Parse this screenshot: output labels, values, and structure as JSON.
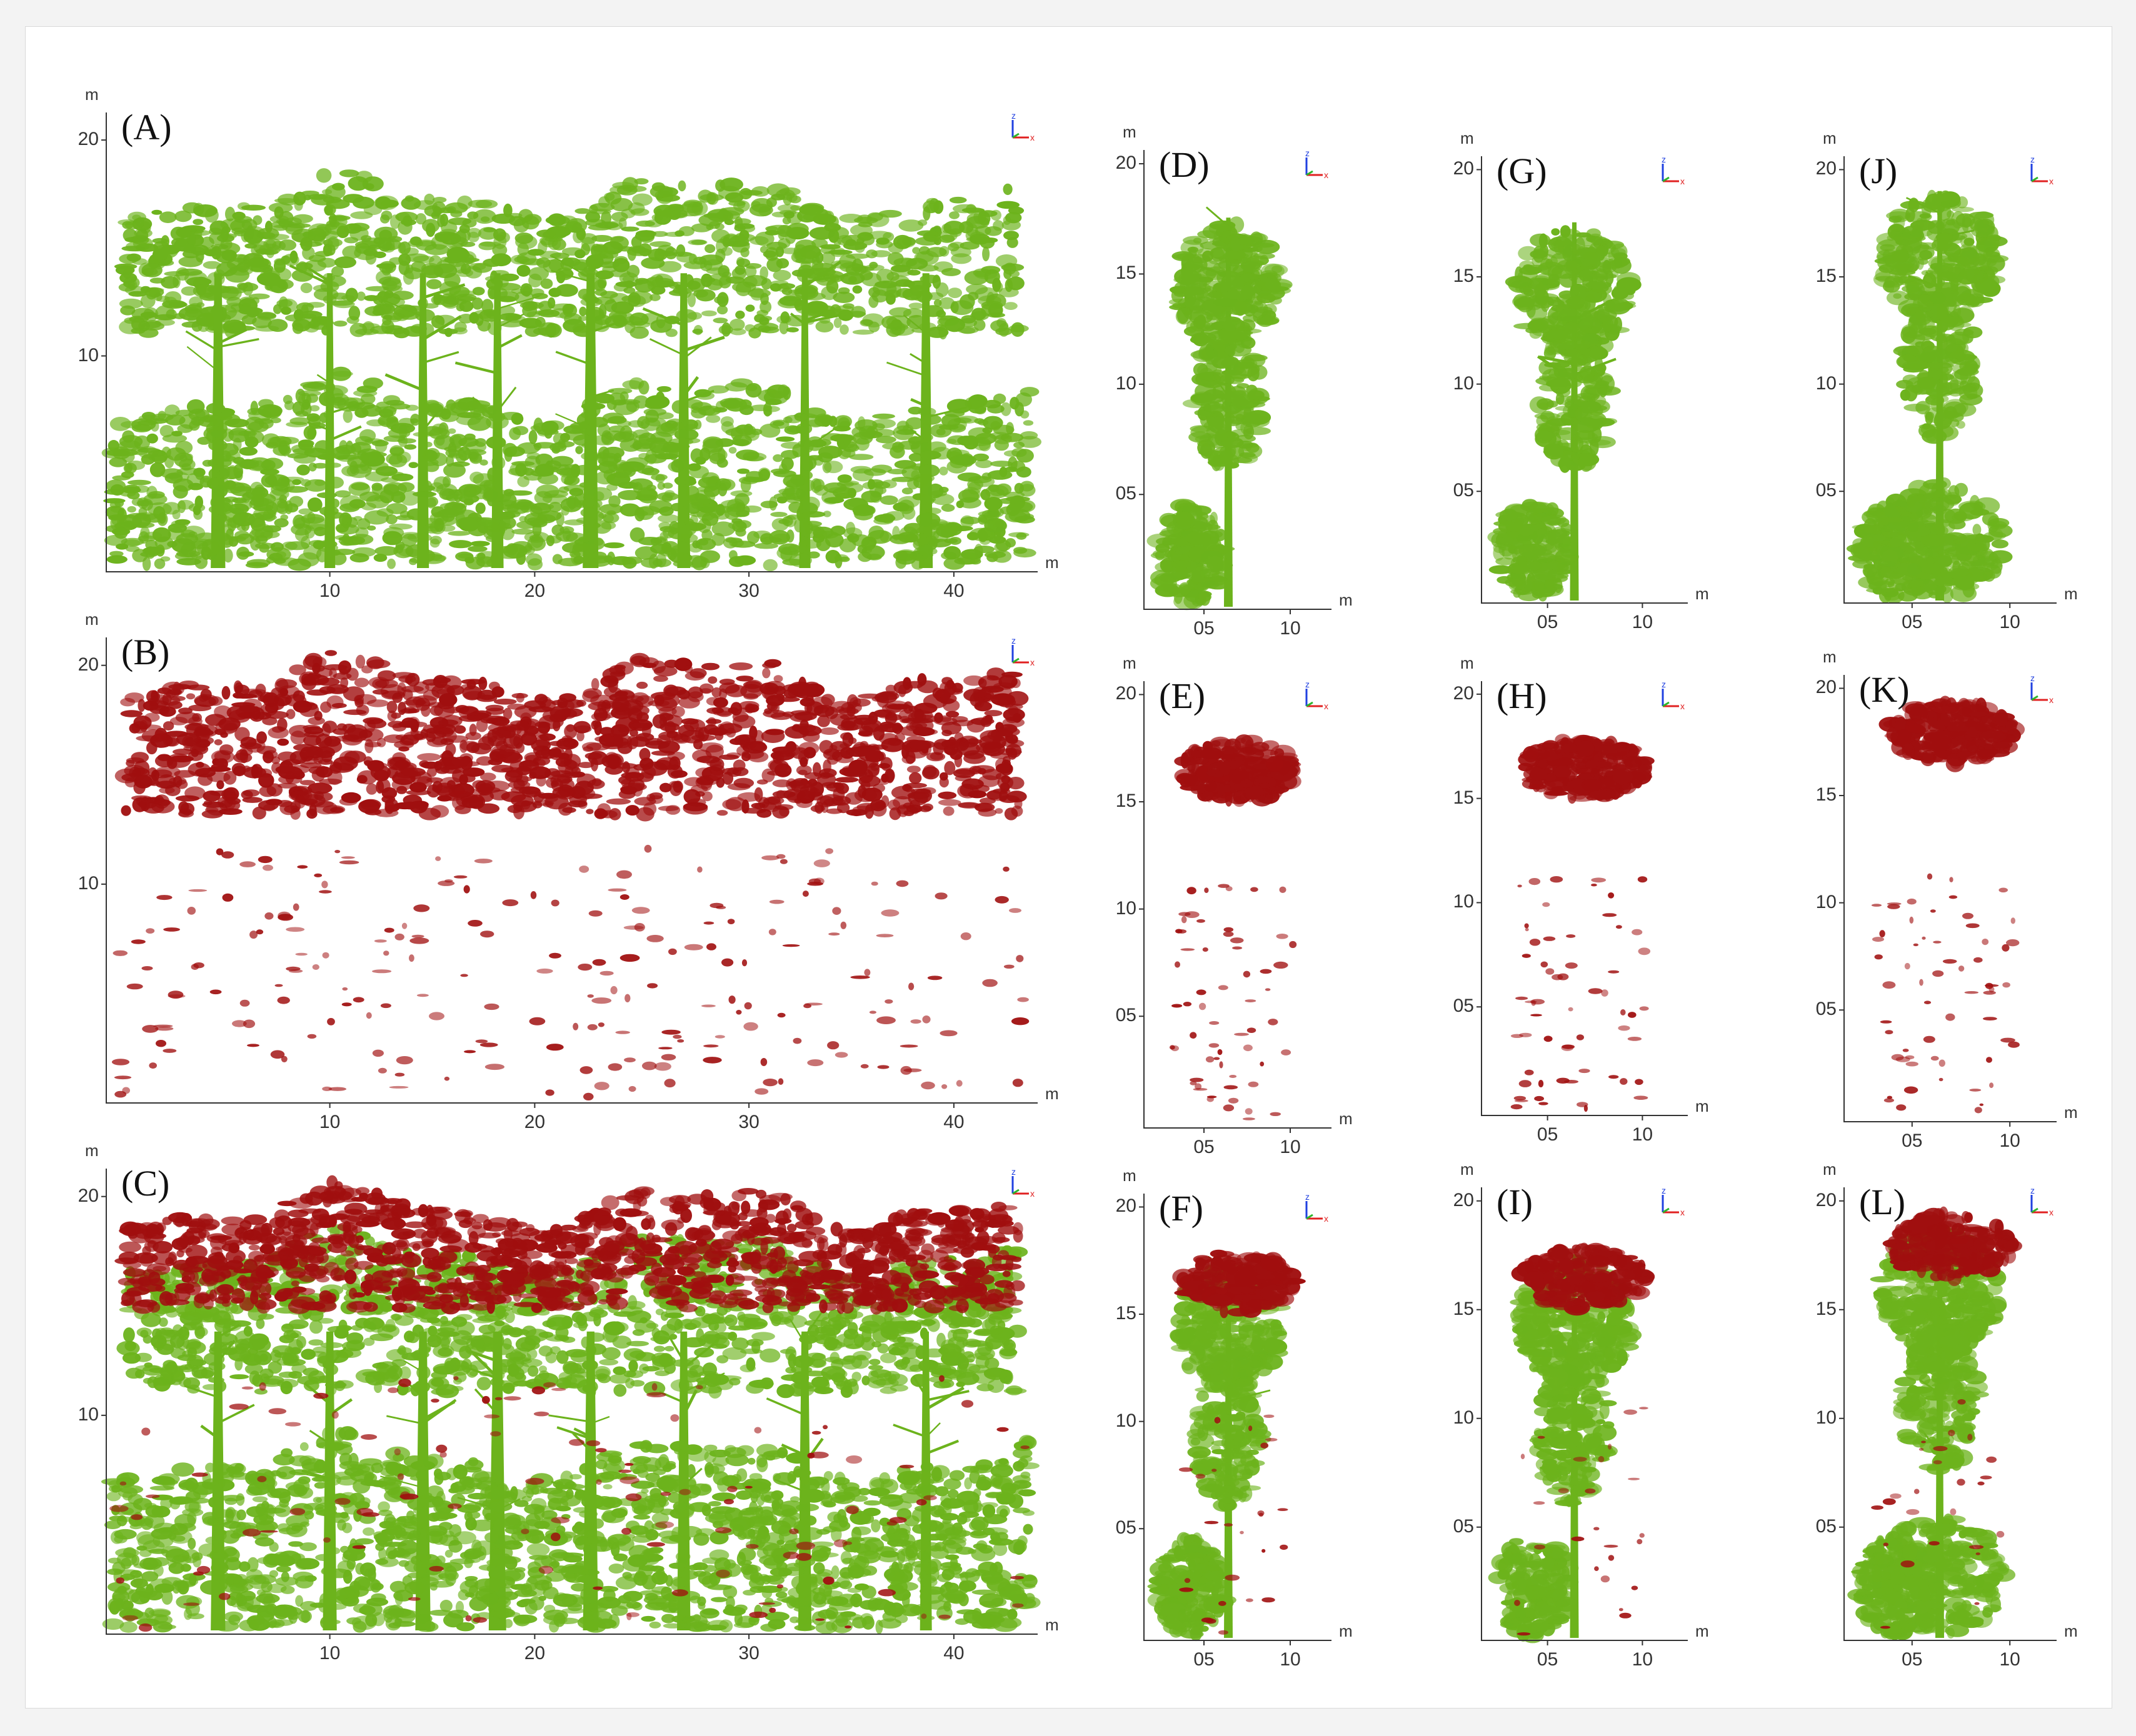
{
  "colors": {
    "unclassified": "#6cb31c",
    "classified": "#a00f0f",
    "axis": "#333333",
    "triad_x": "#e02020",
    "triad_y": "#2cb52c",
    "triad_z": "#2040e0"
  },
  "icons": {
    "axis_triad": "xyz-axis-triad-icon"
  },
  "units": {
    "x": "m",
    "y": "m"
  },
  "triad": {
    "x": "x",
    "z": "z"
  },
  "panels": [
    {
      "id": "A",
      "label": "(A)",
      "type": "wide",
      "layer": "green",
      "y_ticks": [
        "20",
        "10"
      ],
      "x_ticks": [
        "10",
        "20",
        "30",
        "40"
      ]
    },
    {
      "id": "B",
      "label": "(B)",
      "type": "wide",
      "layer": "red",
      "y_ticks": [
        "20",
        "10"
      ],
      "x_ticks": [
        "10",
        "20",
        "30",
        "40"
      ]
    },
    {
      "id": "C",
      "label": "(C)",
      "type": "wide",
      "layer": "both",
      "y_ticks": [
        "20",
        "10"
      ],
      "x_ticks": [
        "10",
        "20",
        "30",
        "40"
      ]
    },
    {
      "id": "D",
      "label": "(D)",
      "type": "tree",
      "tree": 1,
      "layer": "green",
      "y_ticks": [
        "20",
        "15",
        "10",
        "05"
      ],
      "x_ticks": [
        "05",
        "10"
      ]
    },
    {
      "id": "E",
      "label": "(E)",
      "type": "tree",
      "tree": 1,
      "layer": "red",
      "y_ticks": [
        "20",
        "15",
        "10",
        "05"
      ],
      "x_ticks": [
        "05",
        "10"
      ]
    },
    {
      "id": "F",
      "label": "(F)",
      "type": "tree",
      "tree": 1,
      "layer": "both",
      "y_ticks": [
        "20",
        "15",
        "10",
        "05"
      ],
      "x_ticks": [
        "05",
        "10"
      ]
    },
    {
      "id": "G",
      "label": "(G)",
      "type": "tree",
      "tree": 2,
      "layer": "green",
      "y_ticks": [
        "20",
        "15",
        "10",
        "05"
      ],
      "x_ticks": [
        "05",
        "10"
      ]
    },
    {
      "id": "H",
      "label": "(H)",
      "type": "tree",
      "tree": 2,
      "layer": "red",
      "y_ticks": [
        "20",
        "15",
        "10",
        "05"
      ],
      "x_ticks": [
        "05",
        "10"
      ]
    },
    {
      "id": "I",
      "label": "(I)",
      "type": "tree",
      "tree": 2,
      "layer": "both",
      "y_ticks": [
        "20",
        "15",
        "10",
        "05"
      ],
      "x_ticks": [
        "05",
        "10"
      ]
    },
    {
      "id": "J",
      "label": "(J)",
      "type": "tree",
      "tree": 3,
      "layer": "green",
      "y_ticks": [
        "20",
        "15",
        "10",
        "05"
      ],
      "x_ticks": [
        "05",
        "10"
      ]
    },
    {
      "id": "K",
      "label": "(K)",
      "type": "tree",
      "tree": 3,
      "layer": "red",
      "y_ticks": [
        "20",
        "15",
        "10",
        "05"
      ],
      "x_ticks": [
        "05",
        "10"
      ]
    },
    {
      "id": "L",
      "label": "(L)",
      "type": "tree",
      "tree": 3,
      "layer": "both",
      "y_ticks": [
        "20",
        "15",
        "10",
        "05"
      ],
      "x_ticks": [
        "05",
        "10"
      ]
    }
  ]
}
